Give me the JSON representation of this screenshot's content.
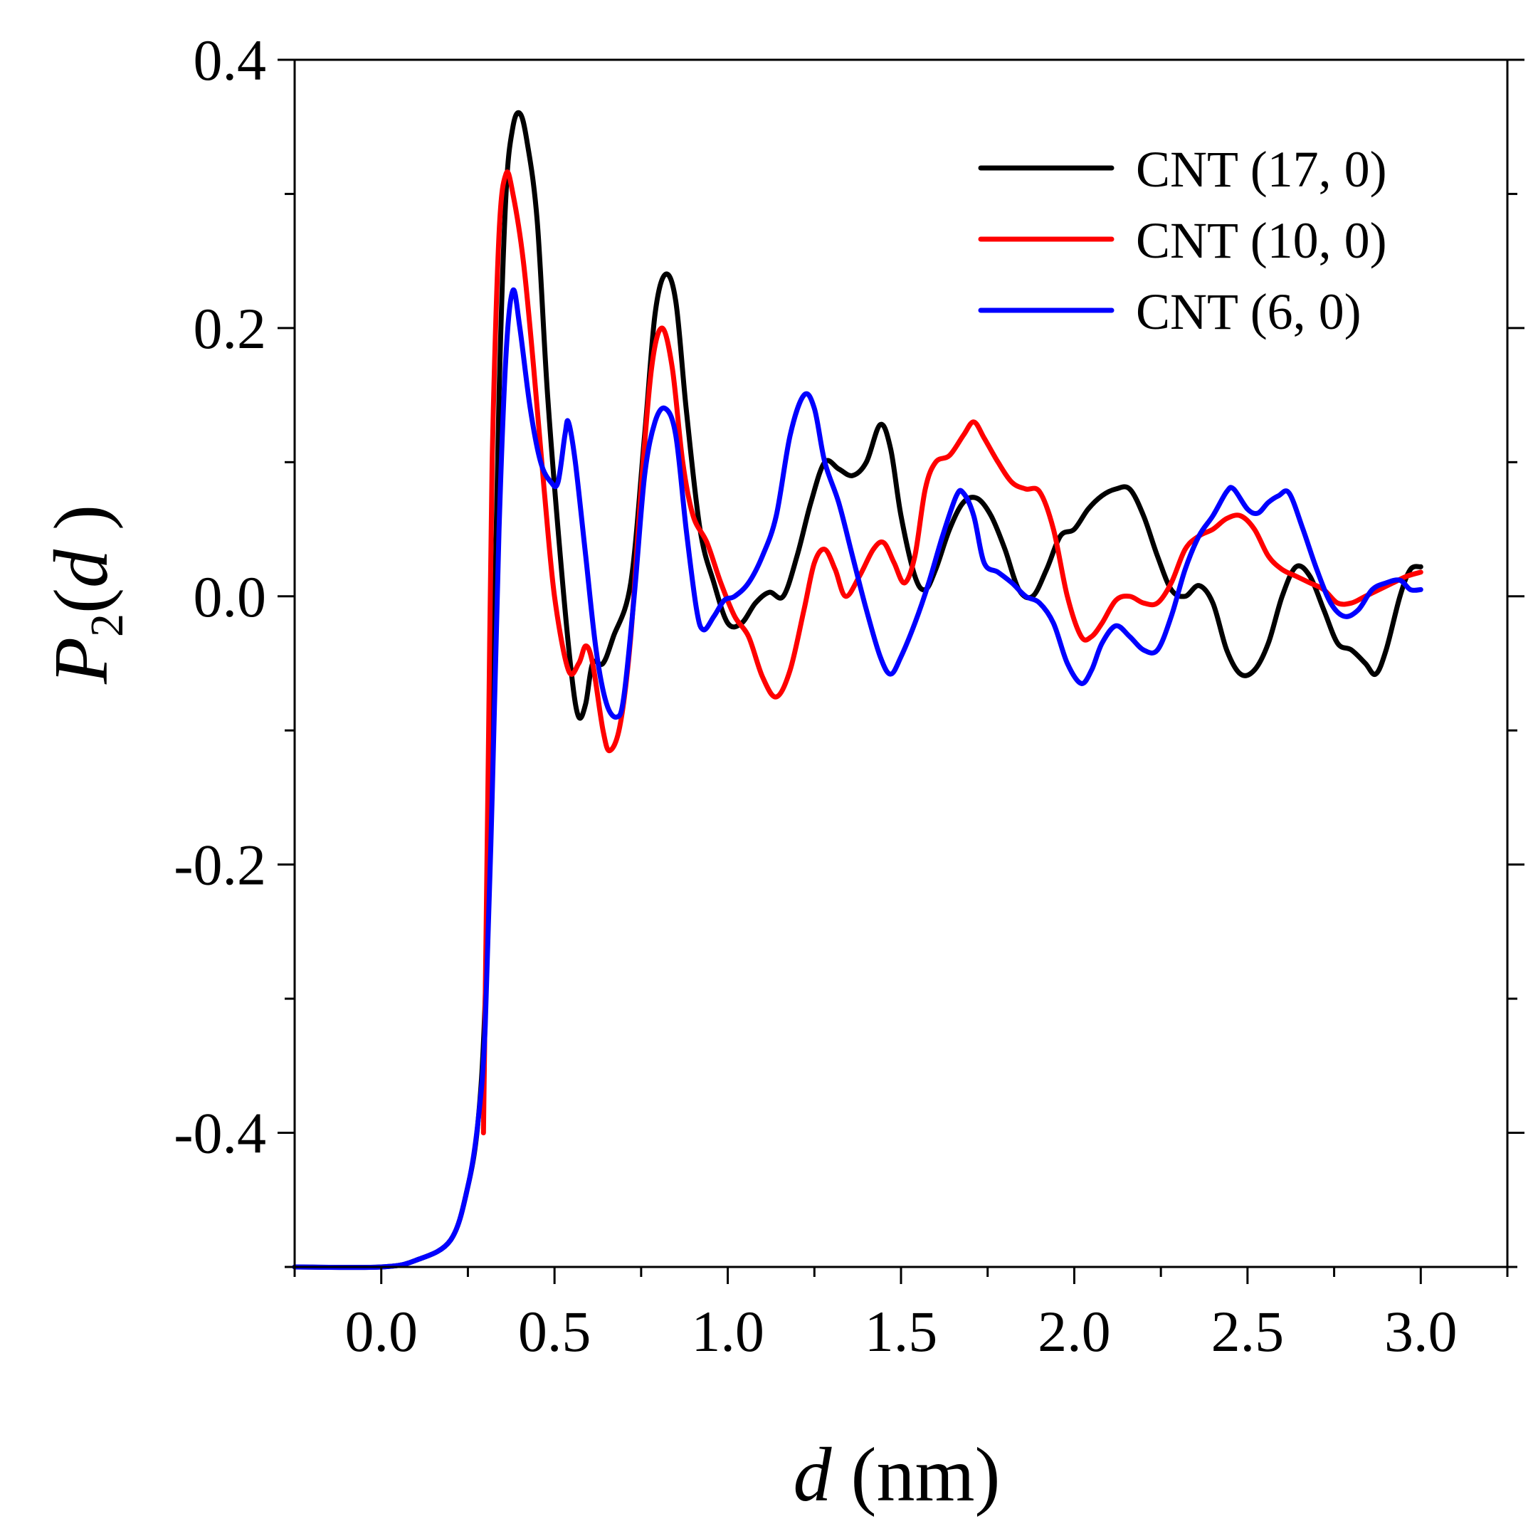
{
  "chart_data": {
    "type": "line",
    "title": "",
    "xlabel": {
      "italic": "d",
      "rest": " (nm)"
    },
    "ylabel": {
      "base": "P",
      "sub": "2",
      "open": "(",
      "var": "d",
      "close": " )"
    },
    "xlim": [
      -0.25,
      3.25
    ],
    "ylim": [
      -0.5,
      0.4
    ],
    "xticks": [
      0.0,
      0.5,
      1.0,
      1.5,
      2.0,
      2.5,
      3.0
    ],
    "xtick_labels": [
      "0.0",
      "0.5",
      "1.0",
      "1.5",
      "2.0",
      "2.5",
      "3.0"
    ],
    "yticks": [
      0.4,
      0.2,
      0.0,
      -0.2,
      -0.4
    ],
    "ytick_labels": [
      "0.4",
      "0.2",
      "0.0",
      "-0.2",
      "-0.4"
    ],
    "legend_position": "top-right",
    "series": [
      {
        "name": "CNT (17, 0)",
        "color": "#000000",
        "points": [
          [
            -0.25,
            -0.5
          ],
          [
            0.0,
            -0.5
          ],
          [
            0.1,
            -0.495
          ],
          [
            0.2,
            -0.48
          ],
          [
            0.25,
            -0.44
          ],
          [
            0.28,
            -0.39
          ],
          [
            0.3,
            -0.3
          ],
          [
            0.32,
            -0.1
          ],
          [
            0.34,
            0.15
          ],
          [
            0.36,
            0.3
          ],
          [
            0.38,
            0.35
          ],
          [
            0.4,
            0.36
          ],
          [
            0.42,
            0.34
          ],
          [
            0.45,
            0.28
          ],
          [
            0.48,
            0.15
          ],
          [
            0.52,
            0.02
          ],
          [
            0.55,
            -0.06
          ],
          [
            0.57,
            -0.09
          ],
          [
            0.59,
            -0.08
          ],
          [
            0.61,
            -0.05
          ],
          [
            0.64,
            -0.05
          ],
          [
            0.67,
            -0.03
          ],
          [
            0.72,
            0.01
          ],
          [
            0.76,
            0.12
          ],
          [
            0.79,
            0.21
          ],
          [
            0.82,
            0.24
          ],
          [
            0.85,
            0.22
          ],
          [
            0.88,
            0.14
          ],
          [
            0.92,
            0.05
          ],
          [
            0.96,
            0.01
          ],
          [
            1.0,
            -0.02
          ],
          [
            1.04,
            -0.02
          ],
          [
            1.08,
            -0.005
          ],
          [
            1.12,
            0.003
          ],
          [
            1.16,
            0.0
          ],
          [
            1.2,
            0.03
          ],
          [
            1.24,
            0.07
          ],
          [
            1.28,
            0.1
          ],
          [
            1.32,
            0.095
          ],
          [
            1.36,
            0.09
          ],
          [
            1.4,
            0.1
          ],
          [
            1.44,
            0.128
          ],
          [
            1.47,
            0.11
          ],
          [
            1.5,
            0.06
          ],
          [
            1.54,
            0.015
          ],
          [
            1.57,
            0.005
          ],
          [
            1.6,
            0.02
          ],
          [
            1.64,
            0.05
          ],
          [
            1.68,
            0.07
          ],
          [
            1.72,
            0.073
          ],
          [
            1.76,
            0.06
          ],
          [
            1.8,
            0.035
          ],
          [
            1.84,
            0.005
          ],
          [
            1.88,
            0.0
          ],
          [
            1.92,
            0.02
          ],
          [
            1.96,
            0.045
          ],
          [
            2.0,
            0.05
          ],
          [
            2.04,
            0.065
          ],
          [
            2.08,
            0.075
          ],
          [
            2.12,
            0.08
          ],
          [
            2.16,
            0.08
          ],
          [
            2.2,
            0.06
          ],
          [
            2.24,
            0.03
          ],
          [
            2.28,
            0.005
          ],
          [
            2.32,
            0.0
          ],
          [
            2.36,
            0.008
          ],
          [
            2.4,
            -0.005
          ],
          [
            2.44,
            -0.04
          ],
          [
            2.48,
            -0.058
          ],
          [
            2.52,
            -0.055
          ],
          [
            2.56,
            -0.035
          ],
          [
            2.6,
            0.0
          ],
          [
            2.64,
            0.022
          ],
          [
            2.68,
            0.015
          ],
          [
            2.72,
            -0.01
          ],
          [
            2.76,
            -0.035
          ],
          [
            2.8,
            -0.04
          ],
          [
            2.84,
            -0.05
          ],
          [
            2.87,
            -0.058
          ],
          [
            2.9,
            -0.04
          ],
          [
            2.94,
            0.0
          ],
          [
            2.97,
            0.02
          ],
          [
            3.0,
            0.022
          ]
        ]
      },
      {
        "name": "CNT (10, 0)",
        "color": "#ff0000",
        "points": [
          [
            0.295,
            -0.4
          ],
          [
            0.3,
            -0.3
          ],
          [
            0.31,
            -0.1
          ],
          [
            0.32,
            0.1
          ],
          [
            0.34,
            0.27
          ],
          [
            0.36,
            0.315
          ],
          [
            0.38,
            0.3
          ],
          [
            0.41,
            0.25
          ],
          [
            0.44,
            0.17
          ],
          [
            0.47,
            0.08
          ],
          [
            0.5,
            0.0
          ],
          [
            0.54,
            -0.055
          ],
          [
            0.57,
            -0.05
          ],
          [
            0.59,
            -0.037
          ],
          [
            0.61,
            -0.05
          ],
          [
            0.64,
            -0.1
          ],
          [
            0.66,
            -0.115
          ],
          [
            0.69,
            -0.095
          ],
          [
            0.72,
            -0.03
          ],
          [
            0.75,
            0.08
          ],
          [
            0.78,
            0.17
          ],
          [
            0.81,
            0.2
          ],
          [
            0.84,
            0.17
          ],
          [
            0.87,
            0.1
          ],
          [
            0.9,
            0.06
          ],
          [
            0.94,
            0.04
          ],
          [
            0.98,
            0.01
          ],
          [
            1.02,
            -0.015
          ],
          [
            1.06,
            -0.03
          ],
          [
            1.1,
            -0.06
          ],
          [
            1.14,
            -0.075
          ],
          [
            1.18,
            -0.055
          ],
          [
            1.22,
            -0.01
          ],
          [
            1.25,
            0.025
          ],
          [
            1.28,
            0.035
          ],
          [
            1.31,
            0.02
          ],
          [
            1.34,
            0.0
          ],
          [
            1.38,
            0.015
          ],
          [
            1.42,
            0.035
          ],
          [
            1.45,
            0.04
          ],
          [
            1.48,
            0.025
          ],
          [
            1.51,
            0.01
          ],
          [
            1.54,
            0.03
          ],
          [
            1.57,
            0.08
          ],
          [
            1.6,
            0.1
          ],
          [
            1.64,
            0.105
          ],
          [
            1.68,
            0.12
          ],
          [
            1.71,
            0.13
          ],
          [
            1.74,
            0.118
          ],
          [
            1.78,
            0.1
          ],
          [
            1.82,
            0.085
          ],
          [
            1.86,
            0.08
          ],
          [
            1.9,
            0.078
          ],
          [
            1.94,
            0.05
          ],
          [
            1.98,
            0.0
          ],
          [
            2.02,
            -0.03
          ],
          [
            2.05,
            -0.03
          ],
          [
            2.08,
            -0.02
          ],
          [
            2.12,
            -0.003
          ],
          [
            2.16,
            0.0
          ],
          [
            2.2,
            -0.005
          ],
          [
            2.24,
            -0.005
          ],
          [
            2.28,
            0.01
          ],
          [
            2.32,
            0.035
          ],
          [
            2.36,
            0.045
          ],
          [
            2.4,
            0.05
          ],
          [
            2.44,
            0.058
          ],
          [
            2.48,
            0.06
          ],
          [
            2.52,
            0.05
          ],
          [
            2.56,
            0.03
          ],
          [
            2.6,
            0.02
          ],
          [
            2.64,
            0.015
          ],
          [
            2.68,
            0.01
          ],
          [
            2.72,
            0.005
          ],
          [
            2.76,
            -0.005
          ],
          [
            2.8,
            -0.005
          ],
          [
            2.84,
            0.0
          ],
          [
            2.88,
            0.005
          ],
          [
            2.92,
            0.01
          ],
          [
            2.96,
            0.015
          ],
          [
            3.0,
            0.018
          ]
        ]
      },
      {
        "name": "CNT (6, 0)",
        "color": "#0000ff",
        "points": [
          [
            -0.25,
            -0.5
          ],
          [
            0.0,
            -0.5
          ],
          [
            0.1,
            -0.495
          ],
          [
            0.2,
            -0.48
          ],
          [
            0.25,
            -0.44
          ],
          [
            0.28,
            -0.39
          ],
          [
            0.3,
            -0.32
          ],
          [
            0.32,
            -0.15
          ],
          [
            0.34,
            0.05
          ],
          [
            0.36,
            0.18
          ],
          [
            0.38,
            0.228
          ],
          [
            0.4,
            0.2
          ],
          [
            0.43,
            0.14
          ],
          [
            0.46,
            0.1
          ],
          [
            0.49,
            0.085
          ],
          [
            0.51,
            0.085
          ],
          [
            0.53,
            0.12
          ],
          [
            0.54,
            0.13
          ],
          [
            0.56,
            0.1
          ],
          [
            0.59,
            0.03
          ],
          [
            0.62,
            -0.04
          ],
          [
            0.65,
            -0.08
          ],
          [
            0.68,
            -0.09
          ],
          [
            0.7,
            -0.075
          ],
          [
            0.73,
            0.0
          ],
          [
            0.76,
            0.09
          ],
          [
            0.79,
            0.13
          ],
          [
            0.82,
            0.14
          ],
          [
            0.85,
            0.12
          ],
          [
            0.88,
            0.05
          ],
          [
            0.91,
            -0.01
          ],
          [
            0.93,
            -0.025
          ],
          [
            0.96,
            -0.015
          ],
          [
            0.99,
            -0.003
          ],
          [
            1.02,
            0.0
          ],
          [
            1.06,
            0.01
          ],
          [
            1.1,
            0.03
          ],
          [
            1.14,
            0.06
          ],
          [
            1.18,
            0.12
          ],
          [
            1.22,
            0.15
          ],
          [
            1.25,
            0.14
          ],
          [
            1.28,
            0.1
          ],
          [
            1.32,
            0.07
          ],
          [
            1.36,
            0.03
          ],
          [
            1.4,
            -0.01
          ],
          [
            1.44,
            -0.045
          ],
          [
            1.47,
            -0.058
          ],
          [
            1.5,
            -0.045
          ],
          [
            1.54,
            -0.02
          ],
          [
            1.58,
            0.01
          ],
          [
            1.62,
            0.045
          ],
          [
            1.66,
            0.075
          ],
          [
            1.68,
            0.077
          ],
          [
            1.71,
            0.06
          ],
          [
            1.74,
            0.025
          ],
          [
            1.78,
            0.018
          ],
          [
            1.82,
            0.01
          ],
          [
            1.86,
            0.0
          ],
          [
            1.9,
            -0.005
          ],
          [
            1.94,
            -0.02
          ],
          [
            1.98,
            -0.05
          ],
          [
            2.02,
            -0.065
          ],
          [
            2.05,
            -0.055
          ],
          [
            2.08,
            -0.035
          ],
          [
            2.12,
            -0.022
          ],
          [
            2.16,
            -0.03
          ],
          [
            2.2,
            -0.04
          ],
          [
            2.24,
            -0.04
          ],
          [
            2.28,
            -0.015
          ],
          [
            2.32,
            0.02
          ],
          [
            2.36,
            0.045
          ],
          [
            2.4,
            0.06
          ],
          [
            2.44,
            0.078
          ],
          [
            2.46,
            0.08
          ],
          [
            2.5,
            0.065
          ],
          [
            2.53,
            0.062
          ],
          [
            2.56,
            0.07
          ],
          [
            2.59,
            0.075
          ],
          [
            2.62,
            0.077
          ],
          [
            2.66,
            0.05
          ],
          [
            2.7,
            0.02
          ],
          [
            2.74,
            -0.005
          ],
          [
            2.78,
            -0.015
          ],
          [
            2.82,
            -0.01
          ],
          [
            2.86,
            0.005
          ],
          [
            2.9,
            0.01
          ],
          [
            2.94,
            0.012
          ],
          [
            2.97,
            0.005
          ],
          [
            3.0,
            0.005
          ]
        ]
      }
    ]
  }
}
